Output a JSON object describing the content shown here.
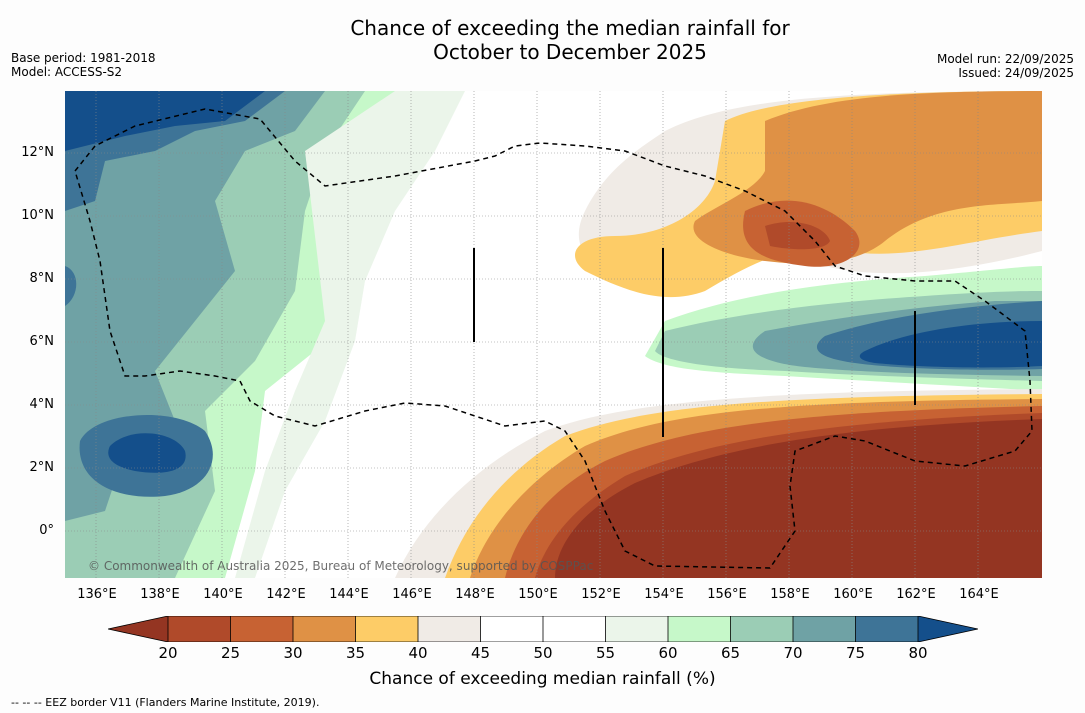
{
  "title": {
    "line1": "Chance of exceeding the median rainfall for",
    "line2": "October to December 2025"
  },
  "meta": {
    "base_period": "Base period: 1981-2018",
    "model": "Model: ACCESS-S2",
    "model_run": "Model run: 22/09/2025",
    "issued": "Issued: 24/09/2025"
  },
  "map": {
    "copyright": "© Commonwealth of Australia 2025, Bureau of Meteorology, supported by COSPPac",
    "x_ticks": [
      "136°E",
      "138°E",
      "140°E",
      "142°E",
      "144°E",
      "146°E",
      "148°E",
      "150°E",
      "152°E",
      "154°E",
      "156°E",
      "158°E",
      "160°E",
      "162°E",
      "164°E"
    ],
    "y_ticks": [
      "12°N",
      "10°N",
      "8°N",
      "6°N",
      "4°N",
      "2°N",
      "0°"
    ]
  },
  "legend": {
    "title": "Chance of exceeding median rainfall (%)",
    "labels": [
      "20",
      "25",
      "30",
      "35",
      "40",
      "45",
      "50",
      "55",
      "60",
      "65",
      "70",
      "75",
      "80"
    ],
    "colors": {
      "below20": "#943522",
      "b20_25": "#b04a2a",
      "b25_30": "#c76233",
      "b30_35": "#df9145",
      "b35_40": "#fdcc67",
      "b40_45": "#f0ebe6",
      "b45_50": "#ffffff",
      "b50_55": "#ffffff",
      "b55_60": "#ebf5ea",
      "b60_65": "#c6f8c9",
      "b65_70": "#9bcdb5",
      "b70_75": "#6fa2a5",
      "b75_80": "#3e7497",
      "above80": "#144f8b"
    }
  },
  "footnote": "--  --  -- EEZ border V11 (Flanders Marine Institute, 2019)."
}
